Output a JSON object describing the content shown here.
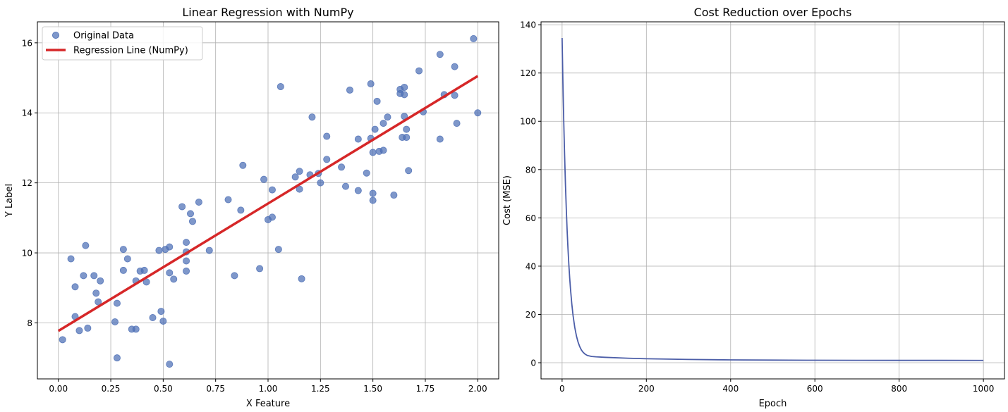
{
  "chart_data": [
    {
      "type": "scatter",
      "title": "Linear Regression with NumPy",
      "xlabel": "X Feature",
      "ylabel": "Y Label",
      "xlim": [
        -0.1,
        2.1
      ],
      "ylim": [
        6.4,
        16.6
      ],
      "xticks": [
        0.0,
        0.25,
        0.5,
        0.75,
        1.0,
        1.25,
        1.5,
        1.75,
        2.0
      ],
      "xtick_labels": [
        "0.00",
        "0.25",
        "0.50",
        "0.75",
        "1.00",
        "1.25",
        "1.50",
        "1.75",
        "2.00"
      ],
      "yticks": [
        8,
        10,
        12,
        14,
        16
      ],
      "ytick_labels": [
        "8",
        "10",
        "12",
        "14",
        "16"
      ],
      "grid": true,
      "legend_position": "top-left",
      "series": [
        {
          "name": "Original Data",
          "kind": "scatter",
          "color": "#4c6fb5",
          "points": [
            [
              0.02,
              7.52
            ],
            [
              0.06,
              9.83
            ],
            [
              0.08,
              9.03
            ],
            [
              0.08,
              8.18
            ],
            [
              0.1,
              7.78
            ],
            [
              0.12,
              9.35
            ],
            [
              0.13,
              10.21
            ],
            [
              0.14,
              7.85
            ],
            [
              0.17,
              9.35
            ],
            [
              0.18,
              8.85
            ],
            [
              0.19,
              8.6
            ],
            [
              0.2,
              9.2
            ],
            [
              0.27,
              8.03
            ],
            [
              0.28,
              8.56
            ],
            [
              0.28,
              7.0
            ],
            [
              0.31,
              10.1
            ],
            [
              0.31,
              9.5
            ],
            [
              0.33,
              9.83
            ],
            [
              0.35,
              7.82
            ],
            [
              0.37,
              7.82
            ],
            [
              0.37,
              9.2
            ],
            [
              0.39,
              9.48
            ],
            [
              0.41,
              9.5
            ],
            [
              0.42,
              9.17
            ],
            [
              0.45,
              8.15
            ],
            [
              0.48,
              10.07
            ],
            [
              0.49,
              8.33
            ],
            [
              0.5,
              8.05
            ],
            [
              0.51,
              10.1
            ],
            [
              0.53,
              10.17
            ],
            [
              0.53,
              9.43
            ],
            [
              0.53,
              6.82
            ],
            [
              0.55,
              9.25
            ],
            [
              0.59,
              11.32
            ],
            [
              0.61,
              10.03
            ],
            [
              0.61,
              10.3
            ],
            [
              0.61,
              9.77
            ],
            [
              0.61,
              9.48
            ],
            [
              0.63,
              11.12
            ],
            [
              0.64,
              10.9
            ],
            [
              0.67,
              11.45
            ],
            [
              0.72,
              10.07
            ],
            [
              0.81,
              11.52
            ],
            [
              0.84,
              9.35
            ],
            [
              0.87,
              11.22
            ],
            [
              0.88,
              12.5
            ],
            [
              0.96,
              9.55
            ],
            [
              0.98,
              12.1
            ],
            [
              1.0,
              10.95
            ],
            [
              1.02,
              11.8
            ],
            [
              1.02,
              11.02
            ],
            [
              1.05,
              10.1
            ],
            [
              1.06,
              14.75
            ],
            [
              1.13,
              12.17
            ],
            [
              1.15,
              11.82
            ],
            [
              1.15,
              12.33
            ],
            [
              1.16,
              9.26
            ],
            [
              1.2,
              12.23
            ],
            [
              1.21,
              13.88
            ],
            [
              1.24,
              12.27
            ],
            [
              1.25,
              12.0
            ],
            [
              1.28,
              13.33
            ],
            [
              1.28,
              12.67
            ],
            [
              1.35,
              12.45
            ],
            [
              1.37,
              11.9
            ],
            [
              1.39,
              14.65
            ],
            [
              1.43,
              13.25
            ],
            [
              1.43,
              11.78
            ],
            [
              1.47,
              12.28
            ],
            [
              1.49,
              14.83
            ],
            [
              1.49,
              13.27
            ],
            [
              1.5,
              12.87
            ],
            [
              1.5,
              11.7
            ],
            [
              1.5,
              11.5
            ],
            [
              1.51,
              13.53
            ],
            [
              1.52,
              14.33
            ],
            [
              1.53,
              12.9
            ],
            [
              1.55,
              12.93
            ],
            [
              1.55,
              13.7
            ],
            [
              1.57,
              13.88
            ],
            [
              1.6,
              11.65
            ],
            [
              1.63,
              14.55
            ],
            [
              1.63,
              14.67
            ],
            [
              1.64,
              13.3
            ],
            [
              1.65,
              14.73
            ],
            [
              1.65,
              14.52
            ],
            [
              1.65,
              13.9
            ],
            [
              1.66,
              13.53
            ],
            [
              1.66,
              13.3
            ],
            [
              1.67,
              12.35
            ],
            [
              1.72,
              15.2
            ],
            [
              1.74,
              14.03
            ],
            [
              1.82,
              15.67
            ],
            [
              1.82,
              13.25
            ],
            [
              1.84,
              14.52
            ],
            [
              1.89,
              14.5
            ],
            [
              1.89,
              15.32
            ],
            [
              1.9,
              13.7
            ],
            [
              1.98,
              16.12
            ],
            [
              2.0,
              14.0
            ]
          ]
        },
        {
          "name": "Regression Line (NumPy)",
          "kind": "line",
          "color": "#d62728",
          "points": [
            [
              0.0,
              7.77
            ],
            [
              2.0,
              15.05
            ]
          ]
        }
      ]
    },
    {
      "type": "line",
      "title": "Cost Reduction over Epochs",
      "xlabel": "Epoch",
      "ylabel": "Cost (MSE)",
      "xlim": [
        -50,
        1050
      ],
      "ylim": [
        -6.7,
        141.2
      ],
      "xticks": [
        0,
        200,
        400,
        600,
        800,
        1000
      ],
      "xtick_labels": [
        "0",
        "200",
        "400",
        "600",
        "800",
        "1000"
      ],
      "yticks": [
        0,
        20,
        40,
        60,
        80,
        100,
        120,
        140
      ],
      "ytick_labels": [
        "0",
        "20",
        "40",
        "60",
        "80",
        "100",
        "120",
        "140"
      ],
      "grid": true,
      "series": [
        {
          "kind": "line",
          "color": "#4c5ea8",
          "points": [
            [
              0,
              134.5
            ],
            [
              2,
              115.5
            ],
            [
              4,
              99.4
            ],
            [
              6,
              85.7
            ],
            [
              8,
              73.6
            ],
            [
              10,
              63.5
            ],
            [
              12,
              54.6
            ],
            [
              14,
              47.2
            ],
            [
              16,
              40.7
            ],
            [
              18,
              35.2
            ],
            [
              20,
              30.4
            ],
            [
              23,
              24.4
            ],
            [
              26,
              19.6
            ],
            [
              30,
              14.7
            ],
            [
              34,
              11.1
            ],
            [
              38,
              8.5
            ],
            [
              42,
              6.6
            ],
            [
              46,
              5.2
            ],
            [
              50,
              4.3
            ],
            [
              55,
              3.5
            ],
            [
              60,
              3.0
            ],
            [
              70,
              2.6
            ],
            [
              80,
              2.45
            ],
            [
              100,
              2.25
            ],
            [
              150,
              1.9
            ],
            [
              200,
              1.65
            ],
            [
              300,
              1.35
            ],
            [
              400,
              1.18
            ],
            [
              500,
              1.08
            ],
            [
              600,
              1.03
            ],
            [
              700,
              1.0
            ],
            [
              800,
              0.98
            ],
            [
              900,
              0.97
            ],
            [
              1000,
              0.96
            ]
          ]
        }
      ]
    }
  ]
}
